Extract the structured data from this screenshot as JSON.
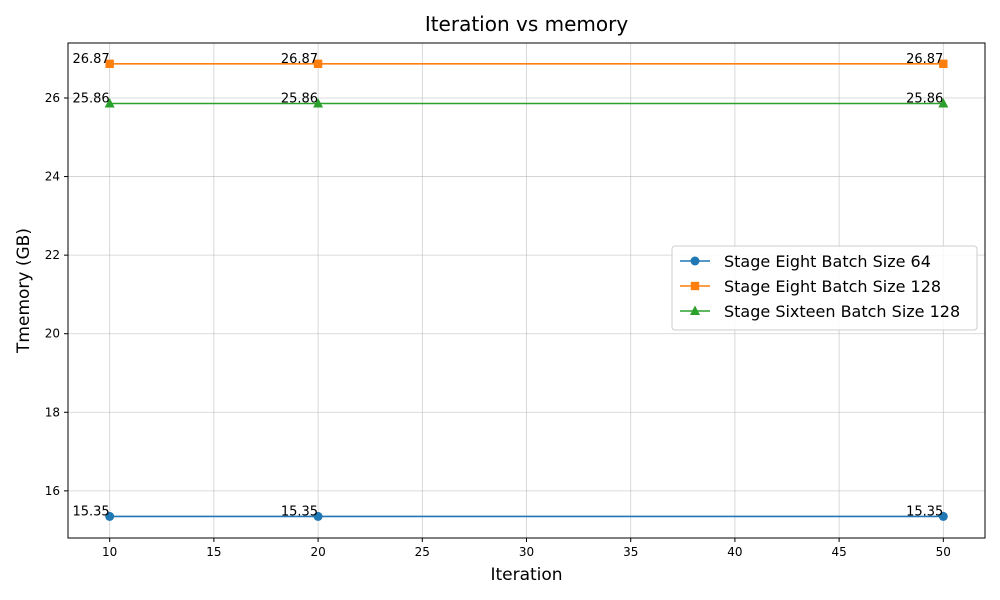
{
  "chart_data": {
    "type": "line",
    "title": "Iteration vs memory",
    "xlabel": "Iteration",
    "ylabel": "Tmemory (GB)",
    "xlim": [
      8,
      52
    ],
    "ylim": [
      14.8,
      27.4
    ],
    "xticks": [
      10,
      15,
      20,
      25,
      30,
      35,
      40,
      45,
      50
    ],
    "yticks": [
      16,
      18,
      20,
      22,
      24,
      26
    ],
    "grid": true,
    "legend_position": "center-right",
    "x": [
      10,
      20,
      50
    ],
    "series": [
      {
        "name": "Stage Eight Batch Size 64",
        "values": [
          15.35,
          15.35,
          15.35
        ],
        "labels": [
          "15.35",
          "15.35",
          "15.35"
        ],
        "color": "#1f77b4",
        "marker": "circle"
      },
      {
        "name": "Stage Eight Batch Size 128",
        "values": [
          26.87,
          26.87,
          26.87
        ],
        "labels": [
          "26.87",
          "26.87",
          "26.87"
        ],
        "color": "#ff7f0e",
        "marker": "square"
      },
      {
        "name": "Stage Sixteen Batch Size 128",
        "values": [
          25.86,
          25.86,
          25.86
        ],
        "labels": [
          "25.86",
          "25.86",
          "25.86"
        ],
        "color": "#2ca02c",
        "marker": "triangle"
      }
    ]
  }
}
